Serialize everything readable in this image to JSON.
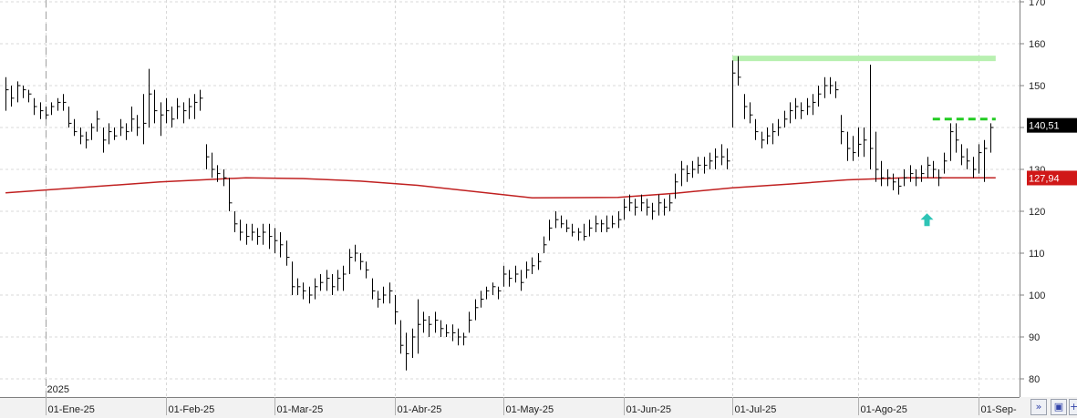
{
  "chart_data": {
    "type": "ohlc",
    "year_label": "2025",
    "ylim": [
      77,
      171
    ],
    "y_ticks": [
      80,
      90,
      100,
      110,
      120,
      130,
      140,
      150,
      160,
      170
    ],
    "y_tick_labels": [
      "80",
      "90",
      "100",
      "110",
      "120",
      "130",
      "140",
      "150",
      "160",
      "170"
    ],
    "x_ticks": [
      {
        "index": 0,
        "label": "01-Ene-25"
      },
      {
        "index": 21,
        "label": "01-Feb-25"
      },
      {
        "index": 40,
        "label": "01-Mar-25"
      },
      {
        "index": 61,
        "label": "01-Abr-25"
      },
      {
        "index": 80,
        "label": "01-May-25"
      },
      {
        "index": 101,
        "label": "01-Jun-25"
      },
      {
        "index": 120,
        "label": "01-Jul-25"
      },
      {
        "index": 142,
        "label": "01-Ago-25"
      },
      {
        "index": 163,
        "label": "01-Sep-"
      }
    ],
    "last_price": {
      "value": 140.51,
      "label": "140,51",
      "color": "#000000"
    },
    "ma_price": {
      "value": 127.94,
      "label": "127,94",
      "color": "#d01818"
    },
    "resistance_line": {
      "value": 156.5,
      "from_index": 120,
      "to_index": 166,
      "color": "#b8f0b0"
    },
    "target_line": {
      "value": 142,
      "from_index": 155,
      "to_index": 166,
      "color": "#22cc22",
      "style": "dashed"
    },
    "arrow": {
      "index": 154,
      "value": 118,
      "color": "#2ec4b6"
    },
    "ma_series": {
      "name": "",
      "color": "#c02020",
      "points": [
        [
          -7,
          124.4
        ],
        [
          20,
          127.0
        ],
        [
          35,
          128.0
        ],
        [
          45,
          127.8
        ],
        [
          55,
          127.2
        ],
        [
          65,
          126.2
        ],
        [
          85,
          123.2
        ],
        [
          100,
          123.3
        ],
        [
          110,
          124.3
        ],
        [
          120,
          125.6
        ],
        [
          130,
          126.5
        ],
        [
          140,
          127.5
        ],
        [
          150,
          128.0
        ],
        [
          160,
          128.0
        ],
        [
          166,
          128.0
        ]
      ]
    },
    "bars": [
      {
        "i": -7,
        "h": 152,
        "l": 144,
        "c": 149
      },
      {
        "i": -6,
        "h": 150,
        "l": 145,
        "c": 147
      },
      {
        "i": -5,
        "h": 151,
        "l": 146,
        "c": 150
      },
      {
        "i": -4,
        "h": 150,
        "l": 147,
        "c": 149
      },
      {
        "i": -3,
        "h": 149,
        "l": 146,
        "c": 148
      },
      {
        "i": -2,
        "h": 147,
        "l": 143,
        "c": 145
      },
      {
        "i": -1,
        "h": 146,
        "l": 142,
        "c": 144
      },
      {
        "i": 0,
        "h": 145,
        "l": 142,
        "c": 143
      },
      {
        "i": 1,
        "h": 146,
        "l": 143,
        "c": 145
      },
      {
        "i": 2,
        "h": 147,
        "l": 144,
        "c": 146
      },
      {
        "i": 3,
        "h": 148,
        "l": 144,
        "c": 146
      },
      {
        "i": 4,
        "h": 145,
        "l": 140,
        "c": 141
      },
      {
        "i": 5,
        "h": 142,
        "l": 138,
        "c": 139
      },
      {
        "i": 6,
        "h": 140,
        "l": 136,
        "c": 138
      },
      {
        "i": 7,
        "h": 139,
        "l": 135,
        "c": 137
      },
      {
        "i": 8,
        "h": 141,
        "l": 137,
        "c": 140
      },
      {
        "i": 9,
        "h": 144,
        "l": 139,
        "c": 142
      },
      {
        "i": 10,
        "h": 140,
        "l": 134,
        "c": 137
      },
      {
        "i": 11,
        "h": 141,
        "l": 136,
        "c": 139
      },
      {
        "i": 12,
        "h": 140,
        "l": 137,
        "c": 138
      },
      {
        "i": 13,
        "h": 142,
        "l": 138,
        "c": 140
      },
      {
        "i": 14,
        "h": 141,
        "l": 137,
        "c": 139
      },
      {
        "i": 15,
        "h": 145,
        "l": 139,
        "c": 142
      },
      {
        "i": 16,
        "h": 143,
        "l": 138,
        "c": 140
      },
      {
        "i": 17,
        "h": 148,
        "l": 136,
        "c": 141
      },
      {
        "i": 18,
        "h": 154,
        "l": 140,
        "c": 148
      },
      {
        "i": 19,
        "h": 149,
        "l": 141,
        "c": 144
      },
      {
        "i": 20,
        "h": 146,
        "l": 138,
        "c": 143
      },
      {
        "i": 21,
        "h": 147,
        "l": 141,
        "c": 144
      },
      {
        "i": 22,
        "h": 145,
        "l": 140,
        "c": 142
      },
      {
        "i": 23,
        "h": 147,
        "l": 142,
        "c": 145
      },
      {
        "i": 24,
        "h": 146,
        "l": 141,
        "c": 144
      },
      {
        "i": 25,
        "h": 147,
        "l": 142,
        "c": 145
      },
      {
        "i": 26,
        "h": 148,
        "l": 142,
        "c": 146
      },
      {
        "i": 27,
        "h": 149,
        "l": 144,
        "c": 147
      },
      {
        "i": 28,
        "h": 136,
        "l": 130,
        "c": 133
      },
      {
        "i": 29,
        "h": 134,
        "l": 128,
        "c": 130
      },
      {
        "i": 30,
        "h": 131,
        "l": 127,
        "c": 129
      },
      {
        "i": 31,
        "h": 130,
        "l": 126,
        "c": 128
      },
      {
        "i": 32,
        "h": 128,
        "l": 120,
        "c": 122
      },
      {
        "i": 33,
        "h": 120,
        "l": 115,
        "c": 117
      },
      {
        "i": 34,
        "h": 118,
        "l": 113,
        "c": 115
      },
      {
        "i": 35,
        "h": 117,
        "l": 112,
        "c": 114
      },
      {
        "i": 36,
        "h": 117,
        "l": 113,
        "c": 115
      },
      {
        "i": 37,
        "h": 116,
        "l": 112,
        "c": 114
      },
      {
        "i": 38,
        "h": 117,
        "l": 112,
        "c": 115
      },
      {
        "i": 39,
        "h": 117,
        "l": 111,
        "c": 114
      },
      {
        "i": 40,
        "h": 116,
        "l": 110,
        "c": 113
      },
      {
        "i": 41,
        "h": 115,
        "l": 109,
        "c": 112
      },
      {
        "i": 42,
        "h": 113,
        "l": 107,
        "c": 109
      },
      {
        "i": 43,
        "h": 108,
        "l": 100,
        "c": 102
      },
      {
        "i": 44,
        "h": 104,
        "l": 100,
        "c": 102
      },
      {
        "i": 45,
        "h": 103,
        "l": 99,
        "c": 101
      },
      {
        "i": 46,
        "h": 102,
        "l": 98,
        "c": 100
      },
      {
        "i": 47,
        "h": 104,
        "l": 99,
        "c": 102
      },
      {
        "i": 48,
        "h": 105,
        "l": 101,
        "c": 103
      },
      {
        "i": 49,
        "h": 106,
        "l": 101,
        "c": 104
      },
      {
        "i": 50,
        "h": 105,
        "l": 100,
        "c": 102
      },
      {
        "i": 51,
        "h": 106,
        "l": 101,
        "c": 104
      },
      {
        "i": 52,
        "h": 107,
        "l": 101,
        "c": 105
      },
      {
        "i": 53,
        "h": 111,
        "l": 105,
        "c": 109
      },
      {
        "i": 54,
        "h": 112,
        "l": 108,
        "c": 110
      },
      {
        "i": 55,
        "h": 110,
        "l": 106,
        "c": 108
      },
      {
        "i": 56,
        "h": 108,
        "l": 104,
        "c": 106
      },
      {
        "i": 57,
        "h": 104,
        "l": 99,
        "c": 101
      },
      {
        "i": 58,
        "h": 101,
        "l": 97,
        "c": 99
      },
      {
        "i": 59,
        "h": 102,
        "l": 98,
        "c": 100
      },
      {
        "i": 60,
        "h": 103,
        "l": 98,
        "c": 101
      },
      {
        "i": 61,
        "h": 100,
        "l": 93,
        "c": 96
      },
      {
        "i": 62,
        "h": 94,
        "l": 86,
        "c": 88
      },
      {
        "i": 63,
        "h": 91,
        "l": 82,
        "c": 86
      },
      {
        "i": 64,
        "h": 92,
        "l": 85,
        "c": 90
      },
      {
        "i": 65,
        "h": 99,
        "l": 86,
        "c": 93
      },
      {
        "i": 66,
        "h": 96,
        "l": 91,
        "c": 94
      },
      {
        "i": 67,
        "h": 95,
        "l": 90,
        "c": 93
      },
      {
        "i": 68,
        "h": 96,
        "l": 91,
        "c": 94
      },
      {
        "i": 69,
        "h": 94,
        "l": 90,
        "c": 92
      },
      {
        "i": 70,
        "h": 93,
        "l": 90,
        "c": 91
      },
      {
        "i": 71,
        "h": 93,
        "l": 89,
        "c": 91
      },
      {
        "i": 72,
        "h": 92,
        "l": 88,
        "c": 90
      },
      {
        "i": 73,
        "h": 91,
        "l": 88,
        "c": 90
      },
      {
        "i": 74,
        "h": 96,
        "l": 91,
        "c": 94
      },
      {
        "i": 75,
        "h": 99,
        "l": 94,
        "c": 97
      },
      {
        "i": 76,
        "h": 101,
        "l": 97,
        "c": 99
      },
      {
        "i": 77,
        "h": 102,
        "l": 99,
        "c": 101
      },
      {
        "i": 78,
        "h": 103,
        "l": 100,
        "c": 102
      },
      {
        "i": 79,
        "h": 102,
        "l": 99,
        "c": 101
      },
      {
        "i": 80,
        "h": 107,
        "l": 102,
        "c": 105
      },
      {
        "i": 81,
        "h": 106,
        "l": 102,
        "c": 104
      },
      {
        "i": 82,
        "h": 107,
        "l": 103,
        "c": 105
      },
      {
        "i": 83,
        "h": 106,
        "l": 101,
        "c": 103
      },
      {
        "i": 84,
        "h": 108,
        "l": 104,
        "c": 106
      },
      {
        "i": 85,
        "h": 109,
        "l": 105,
        "c": 107
      },
      {
        "i": 86,
        "h": 110,
        "l": 106,
        "c": 108
      },
      {
        "i": 87,
        "h": 114,
        "l": 110,
        "c": 112
      },
      {
        "i": 88,
        "h": 118,
        "l": 113,
        "c": 116
      },
      {
        "i": 89,
        "h": 120,
        "l": 116,
        "c": 118
      },
      {
        "i": 90,
        "h": 119,
        "l": 116,
        "c": 117
      },
      {
        "i": 91,
        "h": 118,
        "l": 115,
        "c": 116
      },
      {
        "i": 92,
        "h": 117,
        "l": 114,
        "c": 115
      },
      {
        "i": 93,
        "h": 116,
        "l": 113,
        "c": 115
      },
      {
        "i": 94,
        "h": 117,
        "l": 113,
        "c": 114
      },
      {
        "i": 95,
        "h": 118,
        "l": 114,
        "c": 116
      },
      {
        "i": 96,
        "h": 119,
        "l": 115,
        "c": 117
      },
      {
        "i": 97,
        "h": 118,
        "l": 115,
        "c": 117
      },
      {
        "i": 98,
        "h": 119,
        "l": 115,
        "c": 116
      },
      {
        "i": 99,
        "h": 119,
        "l": 116,
        "c": 117
      },
      {
        "i": 100,
        "h": 120,
        "l": 116,
        "c": 118
      },
      {
        "i": 101,
        "h": 123,
        "l": 118,
        "c": 121
      },
      {
        "i": 102,
        "h": 124,
        "l": 120,
        "c": 122
      },
      {
        "i": 103,
        "h": 123,
        "l": 119,
        "c": 121
      },
      {
        "i": 104,
        "h": 124,
        "l": 120,
        "c": 122
      },
      {
        "i": 105,
        "h": 123,
        "l": 119,
        "c": 121
      },
      {
        "i": 106,
        "h": 122,
        "l": 118,
        "c": 120
      },
      {
        "i": 107,
        "h": 124,
        "l": 119,
        "c": 122
      },
      {
        "i": 108,
        "h": 123,
        "l": 119,
        "c": 121
      },
      {
        "i": 109,
        "h": 124,
        "l": 120,
        "c": 122
      },
      {
        "i": 110,
        "h": 129,
        "l": 123,
        "c": 127
      },
      {
        "i": 111,
        "h": 132,
        "l": 126,
        "c": 130
      },
      {
        "i": 112,
        "h": 131,
        "l": 127,
        "c": 129
      },
      {
        "i": 113,
        "h": 132,
        "l": 128,
        "c": 130
      },
      {
        "i": 114,
        "h": 133,
        "l": 129,
        "c": 131
      },
      {
        "i": 115,
        "h": 133,
        "l": 129,
        "c": 131
      },
      {
        "i": 116,
        "h": 134,
        "l": 130,
        "c": 132
      },
      {
        "i": 117,
        "h": 135,
        "l": 130,
        "c": 133
      },
      {
        "i": 118,
        "h": 136,
        "l": 131,
        "c": 133
      },
      {
        "i": 119,
        "h": 135,
        "l": 130,
        "c": 132
      },
      {
        "i": 120,
        "h": 156,
        "l": 140,
        "c": 153
      },
      {
        "i": 121,
        "h": 157,
        "l": 150,
        "c": 152
      },
      {
        "i": 122,
        "h": 148,
        "l": 142,
        "c": 145
      },
      {
        "i": 123,
        "h": 146,
        "l": 141,
        "c": 143
      },
      {
        "i": 124,
        "h": 142,
        "l": 137,
        "c": 139
      },
      {
        "i": 125,
        "h": 139,
        "l": 135,
        "c": 137
      },
      {
        "i": 126,
        "h": 140,
        "l": 136,
        "c": 138
      },
      {
        "i": 127,
        "h": 141,
        "l": 136,
        "c": 139
      },
      {
        "i": 128,
        "h": 142,
        "l": 138,
        "c": 140
      },
      {
        "i": 129,
        "h": 144,
        "l": 140,
        "c": 142
      },
      {
        "i": 130,
        "h": 146,
        "l": 141,
        "c": 144
      },
      {
        "i": 131,
        "h": 147,
        "l": 142,
        "c": 145
      },
      {
        "i": 132,
        "h": 146,
        "l": 142,
        "c": 144
      },
      {
        "i": 133,
        "h": 147,
        "l": 143,
        "c": 145
      },
      {
        "i": 134,
        "h": 148,
        "l": 143,
        "c": 146
      },
      {
        "i": 135,
        "h": 150,
        "l": 145,
        "c": 148
      },
      {
        "i": 136,
        "h": 152,
        "l": 147,
        "c": 150
      },
      {
        "i": 137,
        "h": 152,
        "l": 148,
        "c": 150
      },
      {
        "i": 138,
        "h": 151,
        "l": 147,
        "c": 149
      },
      {
        "i": 139,
        "h": 143,
        "l": 136,
        "c": 139
      },
      {
        "i": 140,
        "h": 139,
        "l": 132,
        "c": 135
      },
      {
        "i": 141,
        "h": 138,
        "l": 132,
        "c": 134
      },
      {
        "i": 142,
        "h": 140,
        "l": 133,
        "c": 136
      },
      {
        "i": 143,
        "h": 140,
        "l": 133,
        "c": 137
      },
      {
        "i": 144,
        "h": 155,
        "l": 130,
        "c": 135
      },
      {
        "i": 145,
        "h": 139,
        "l": 127,
        "c": 130
      },
      {
        "i": 146,
        "h": 132,
        "l": 126,
        "c": 128
      },
      {
        "i": 147,
        "h": 130,
        "l": 126,
        "c": 128
      },
      {
        "i": 148,
        "h": 129,
        "l": 125,
        "c": 127
      },
      {
        "i": 149,
        "h": 128,
        "l": 124,
        "c": 126
      },
      {
        "i": 150,
        "h": 130,
        "l": 126,
        "c": 128
      },
      {
        "i": 151,
        "h": 131,
        "l": 127,
        "c": 129
      },
      {
        "i": 152,
        "h": 130,
        "l": 126,
        "c": 128
      },
      {
        "i": 153,
        "h": 131,
        "l": 127,
        "c": 129
      },
      {
        "i": 154,
        "h": 133,
        "l": 128,
        "c": 131
      },
      {
        "i": 155,
        "h": 132,
        "l": 128,
        "c": 130
      },
      {
        "i": 156,
        "h": 130,
        "l": 126,
        "c": 128
      },
      {
        "i": 157,
        "h": 134,
        "l": 129,
        "c": 132
      },
      {
        "i": 158,
        "h": 141,
        "l": 132,
        "c": 139
      },
      {
        "i": 159,
        "h": 141,
        "l": 134,
        "c": 137
      },
      {
        "i": 160,
        "h": 136,
        "l": 131,
        "c": 133
      },
      {
        "i": 161,
        "h": 135,
        "l": 130,
        "c": 132
      },
      {
        "i": 162,
        "h": 133,
        "l": 128,
        "c": 130
      },
      {
        "i": 163,
        "h": 136,
        "l": 129,
        "c": 134
      },
      {
        "i": 164,
        "h": 137,
        "l": 127,
        "c": 135
      },
      {
        "i": 165,
        "h": 141,
        "l": 134,
        "c": 140
      }
    ]
  },
  "toolbar": {
    "zoom_icon": "double-chevron-icon",
    "save_icon": "save-icon",
    "add_label": "+"
  }
}
